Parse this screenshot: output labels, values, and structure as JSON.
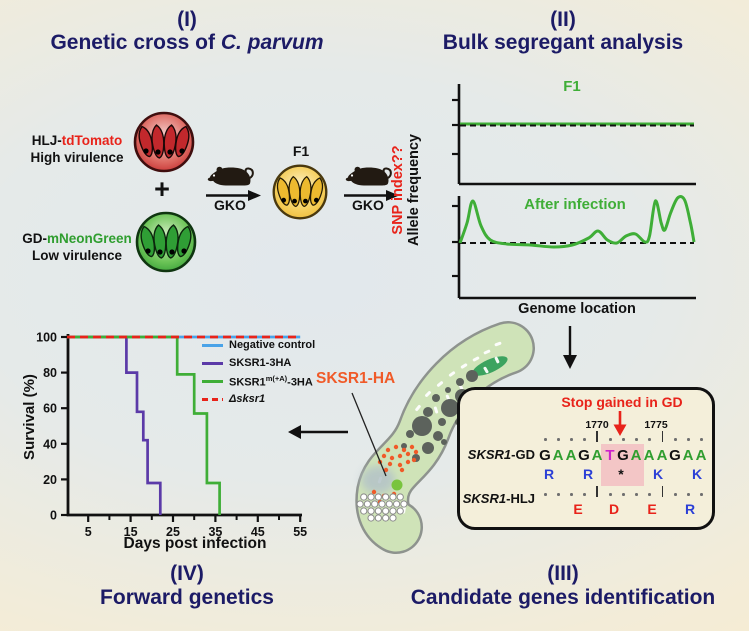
{
  "panels": {
    "p1": {
      "num": "(I)",
      "title_pre": "Genetic cross of ",
      "title_italic": "C. parvum"
    },
    "p2": {
      "num": "(II)",
      "title": "Bulk segregant analysis"
    },
    "p3": {
      "num": "(III)",
      "title": "Candidate genes identification"
    },
    "p4": {
      "num": "(IV)",
      "title": "Forward genetics"
    }
  },
  "cross": {
    "parent1_black": "HLJ-",
    "parent1_red": "tdTomato",
    "parent1_sub": "High virulence",
    "plus": "+",
    "parent2_black": "GD-",
    "parent2_green": "mNeonGreen",
    "parent2_sub": "Low virulence",
    "gko": "GKO",
    "f1": "F1"
  },
  "bsa": {
    "ylabel_red": "SNP index??",
    "ylabel_black": "Allele frequency",
    "xlabel": "Genome location"
  },
  "chart_data": [
    {
      "type": "line",
      "panel": "bsa-f1",
      "title": "F1",
      "xlabel": "Genome location",
      "ylabel": "Allele frequency",
      "baseline_y": 0.6,
      "grid": false,
      "series": [
        {
          "name": "F1 allele frequency",
          "color": "#3fae37",
          "points": [
            [
              0,
              0.6
            ],
            [
              1,
              0.6
            ]
          ]
        }
      ]
    },
    {
      "type": "line",
      "panel": "bsa-after-infection",
      "title": "After infection",
      "xlabel": "Genome location",
      "ylabel": "Allele frequency",
      "baseline_y": 0.55,
      "grid": false,
      "series": [
        {
          "name": "After infection allele frequency",
          "color": "#3fae37",
          "points": [
            [
              0,
              0.55
            ],
            [
              0.03,
              0.75
            ],
            [
              0.055,
              0.97
            ],
            [
              0.09,
              0.72
            ],
            [
              0.13,
              0.58
            ],
            [
              0.2,
              0.54
            ],
            [
              0.3,
              0.53
            ],
            [
              0.4,
              0.51
            ],
            [
              0.48,
              0.53
            ],
            [
              0.55,
              0.6
            ],
            [
              0.59,
              0.67
            ],
            [
              0.63,
              0.58
            ],
            [
              0.67,
              0.55
            ],
            [
              0.71,
              0.62
            ],
            [
              0.75,
              0.64
            ],
            [
              0.79,
              0.56
            ],
            [
              0.81,
              0.62
            ],
            [
              0.835,
              0.97
            ],
            [
              0.86,
              0.75
            ],
            [
              0.875,
              0.68
            ],
            [
              0.9,
              0.85
            ],
            [
              0.93,
              1.0
            ],
            [
              0.96,
              0.98
            ],
            [
              0.985,
              0.75
            ],
            [
              1.0,
              0.56
            ]
          ]
        }
      ]
    },
    {
      "type": "line",
      "panel": "survival",
      "title": "",
      "xlabel": "Days post infection",
      "ylabel": "Survival (%)",
      "xlim": [
        0,
        55
      ],
      "ylim": [
        0,
        100
      ],
      "xticks": [
        5,
        15,
        25,
        35,
        45,
        55
      ],
      "xticks_minor": [
        10,
        20,
        30,
        40,
        50
      ],
      "yticks": [
        0,
        20,
        40,
        60,
        80,
        100
      ],
      "legend_position": "upper right",
      "grid": false,
      "series": [
        {
          "name": "Negative control",
          "color": "#4aa3e8",
          "dash": false,
          "points": [
            [
              0,
              100
            ],
            [
              55,
              100
            ]
          ]
        },
        {
          "name": "SKSR1-3HA",
          "color": "#5b3aa8",
          "dash": false,
          "points": [
            [
              0,
              100
            ],
            [
              14,
              100
            ],
            [
              14,
              80
            ],
            [
              16.5,
              80
            ],
            [
              16.5,
              58
            ],
            [
              18,
              58
            ],
            [
              18,
              42
            ],
            [
              19,
              42
            ],
            [
              19,
              18
            ],
            [
              22,
              18
            ],
            [
              22,
              0
            ]
          ]
        },
        {
          "name": "SKSR1",
          "sup": "m(+A)",
          "post": "-3HA",
          "color": "#3fae37",
          "dash": false,
          "points": [
            [
              0,
              100
            ],
            [
              26,
              100
            ],
            [
              26,
              79
            ],
            [
              30,
              79
            ],
            [
              30,
              57
            ],
            [
              33,
              57
            ],
            [
              33,
              18
            ],
            [
              36,
              18
            ],
            [
              36,
              0
            ]
          ]
        },
        {
          "name": "Δsksr1",
          "italic": true,
          "color": "#e8231a",
          "dash": true,
          "points": [
            [
              0,
              100
            ],
            [
              55,
              100
            ]
          ]
        }
      ]
    }
  ],
  "candidate": {
    "stop_text": "Stop gained in GD",
    "pos1": "1770",
    "pos2": "1775",
    "gd_italic": "SKSR1",
    "gd_rest": "-GD",
    "hlj_italic": "SKSR1",
    "hlj_rest": "-HLJ",
    "sequence": [
      [
        "G",
        "k"
      ],
      [
        "A",
        "g"
      ],
      [
        "A",
        "g"
      ],
      [
        "G",
        "k"
      ],
      [
        "A",
        "g"
      ],
      [
        "T",
        "m"
      ],
      [
        "G",
        "k"
      ],
      [
        "A",
        "g"
      ],
      [
        "A",
        "g"
      ],
      [
        "A",
        "g"
      ],
      [
        "G",
        "k"
      ],
      [
        "A",
        "g"
      ],
      [
        "A",
        "g"
      ]
    ],
    "gd_aa": [
      [
        "R",
        "b"
      ],
      [
        "R",
        "b"
      ],
      [
        "*",
        "k"
      ],
      [
        "K",
        "b"
      ],
      [
        "K",
        "b"
      ]
    ],
    "hlj_aa": [
      [
        "E",
        "r"
      ],
      [
        "D",
        "r"
      ],
      [
        "E",
        "r"
      ],
      [
        "R",
        "b"
      ]
    ]
  },
  "parasite": {
    "label": "SKSR1-HA"
  },
  "colors": {
    "title_navy": "#1c1b66",
    "red_text": "#e8231a",
    "green": "#3fae37",
    "purple": "#5b3aa8",
    "blue": "#4aa3e8",
    "orange": "#f05a28",
    "magenta": "#cc22cc",
    "amino_blue": "#2b3fd6",
    "amino_red": "#e8231a",
    "highlight_pink": "#f3c6c6",
    "nt_black": "#111111",
    "nt_green": "#2f9e2f"
  }
}
